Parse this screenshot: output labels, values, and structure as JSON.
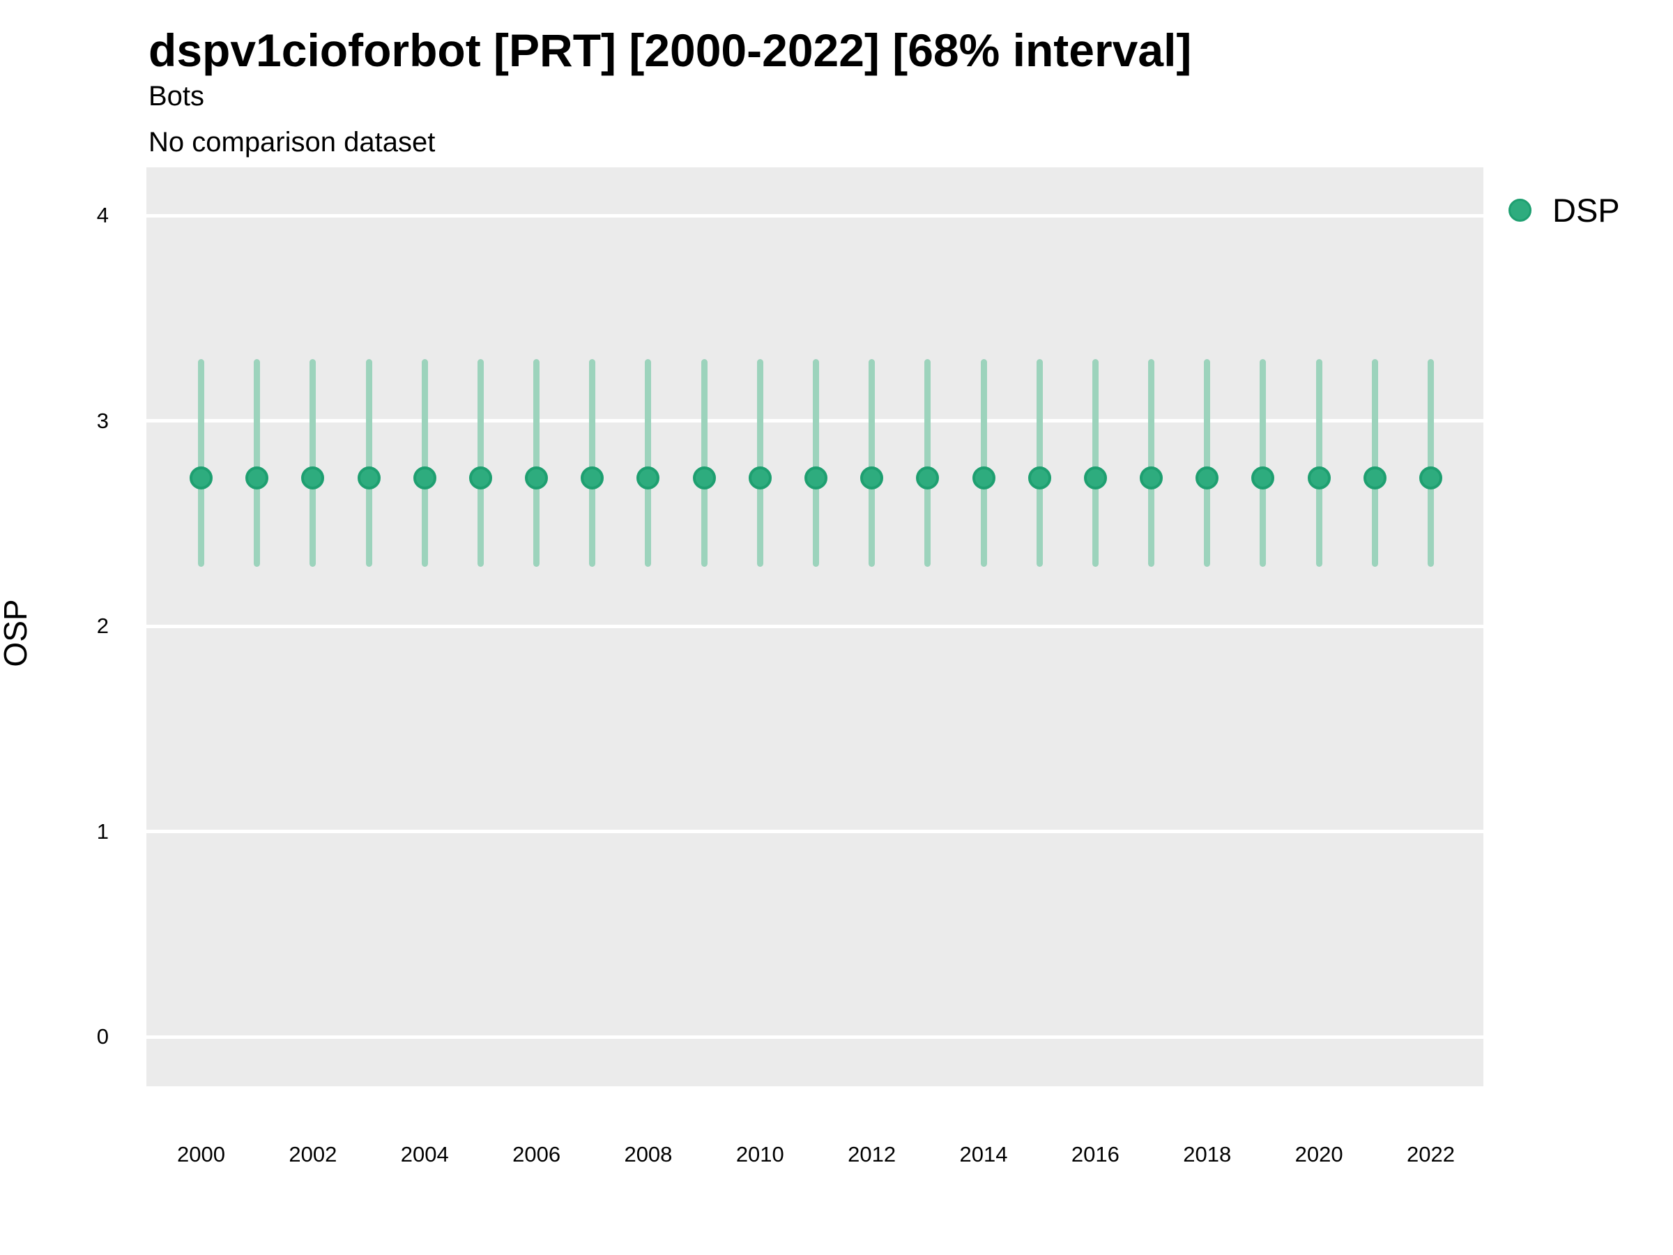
{
  "header": {
    "title": "dspv1cioforbot [PRT] [2000-2022] [68% interval]",
    "subtitle": "Bots",
    "note": "No comparison dataset"
  },
  "legend": {
    "position": "right",
    "items": [
      {
        "label": "DSP",
        "marker": "circle-icon"
      }
    ]
  },
  "chart_data": {
    "type": "pointrange-scatter",
    "title": "dspv1cioforbot [PRT] [2000-2022] [68% interval]",
    "subtitle": "Bots",
    "note": "No comparison dataset",
    "xlabel": "",
    "ylabel": "OSP",
    "interval_label": "68% interval",
    "grid": "horizontal-only",
    "ylim": [
      -0.24,
      4.23
    ],
    "yticks": [
      0,
      1,
      2,
      3,
      4
    ],
    "xticks": [
      2000,
      2002,
      2004,
      2006,
      2008,
      2010,
      2012,
      2014,
      2016,
      2018,
      2020,
      2022
    ],
    "years": [
      2000,
      2001,
      2002,
      2003,
      2004,
      2005,
      2006,
      2007,
      2008,
      2009,
      2010,
      2011,
      2012,
      2013,
      2014,
      2015,
      2016,
      2017,
      2018,
      2019,
      2020,
      2021,
      2022
    ],
    "series": [
      {
        "name": "DSP",
        "values": [
          2.72,
          2.72,
          2.72,
          2.72,
          2.72,
          2.72,
          2.72,
          2.72,
          2.72,
          2.72,
          2.72,
          2.72,
          2.72,
          2.72,
          2.72,
          2.72,
          2.72,
          2.72,
          2.72,
          2.72,
          2.72,
          2.72,
          2.72
        ],
        "lower": [
          2.29,
          2.29,
          2.29,
          2.29,
          2.29,
          2.29,
          2.29,
          2.29,
          2.29,
          2.29,
          2.29,
          2.29,
          2.29,
          2.29,
          2.29,
          2.29,
          2.29,
          2.29,
          2.29,
          2.29,
          2.29,
          2.29,
          2.29
        ],
        "upper": [
          3.3,
          3.3,
          3.3,
          3.3,
          3.3,
          3.3,
          3.3,
          3.3,
          3.3,
          3.3,
          3.3,
          3.3,
          3.3,
          3.3,
          3.3,
          3.3,
          3.3,
          3.3,
          3.3,
          3.3,
          3.3,
          3.3,
          3.3
        ]
      }
    ],
    "colors": {
      "point_fill": "#2EAC7E",
      "point_stroke": "#1E9F70",
      "error_bar": "#9CD3BC",
      "panel_background": "#EBEBEB",
      "gridline": "#FFFFFF",
      "text": "#000000"
    }
  }
}
